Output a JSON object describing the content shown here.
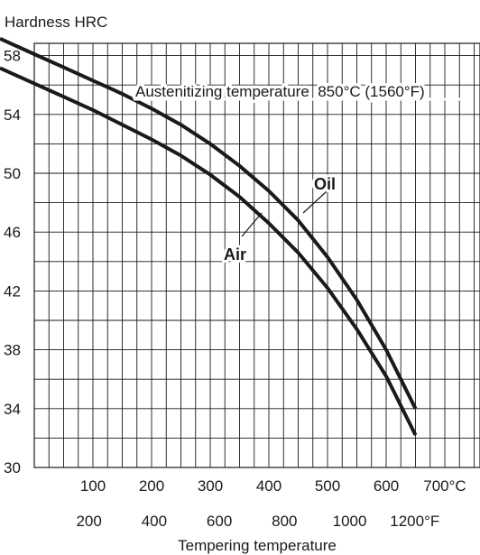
{
  "chart_data": {
    "type": "line",
    "ylabel": "Hardness HRC",
    "xlabel": "Tempering temperature",
    "annotation": "Austenitizing temperature  850°C (1560°F)",
    "xlim_c": [
      0,
      720
    ],
    "ylim": [
      30,
      60
    ],
    "grid": true,
    "y_ticks": [
      "30",
      "34",
      "38",
      "42",
      "46",
      "50",
      "54",
      "58"
    ],
    "x_ticks_c": [
      {
        "value": 100,
        "label": "100"
      },
      {
        "value": 200,
        "label": "200"
      },
      {
        "value": 300,
        "label": "300"
      },
      {
        "value": 400,
        "label": "400"
      },
      {
        "value": 500,
        "label": "500"
      },
      {
        "value": 600,
        "label": "600"
      },
      {
        "value": 700,
        "label": "700°C"
      }
    ],
    "x_ticks_f": [
      {
        "value": 200,
        "label": "200"
      },
      {
        "value": 400,
        "label": "400"
      },
      {
        "value": 600,
        "label": "600"
      },
      {
        "value": 800,
        "label": "800"
      },
      {
        "value": 1000,
        "label": "1000"
      },
      {
        "value": 1200,
        "label": "1200°F"
      }
    ],
    "series": [
      {
        "name": "Oil",
        "x": [
          0,
          50,
          100,
          150,
          200,
          250,
          300,
          350,
          400,
          450,
          500,
          550,
          600,
          650
        ],
        "values": [
          58.1,
          57.2,
          56.3,
          55.4,
          54.4,
          53.3,
          52.0,
          50.5,
          48.8,
          46.8,
          44.3,
          41.4,
          38.0,
          34.0
        ]
      },
      {
        "name": "Air",
        "x": [
          0,
          50,
          100,
          150,
          200,
          250,
          300,
          350,
          400,
          450,
          500,
          550,
          600,
          650
        ],
        "values": [
          56.1,
          55.2,
          54.3,
          53.3,
          52.3,
          51.2,
          49.9,
          48.4,
          46.6,
          44.6,
          42.2,
          39.4,
          36.2,
          32.2
        ]
      }
    ]
  }
}
